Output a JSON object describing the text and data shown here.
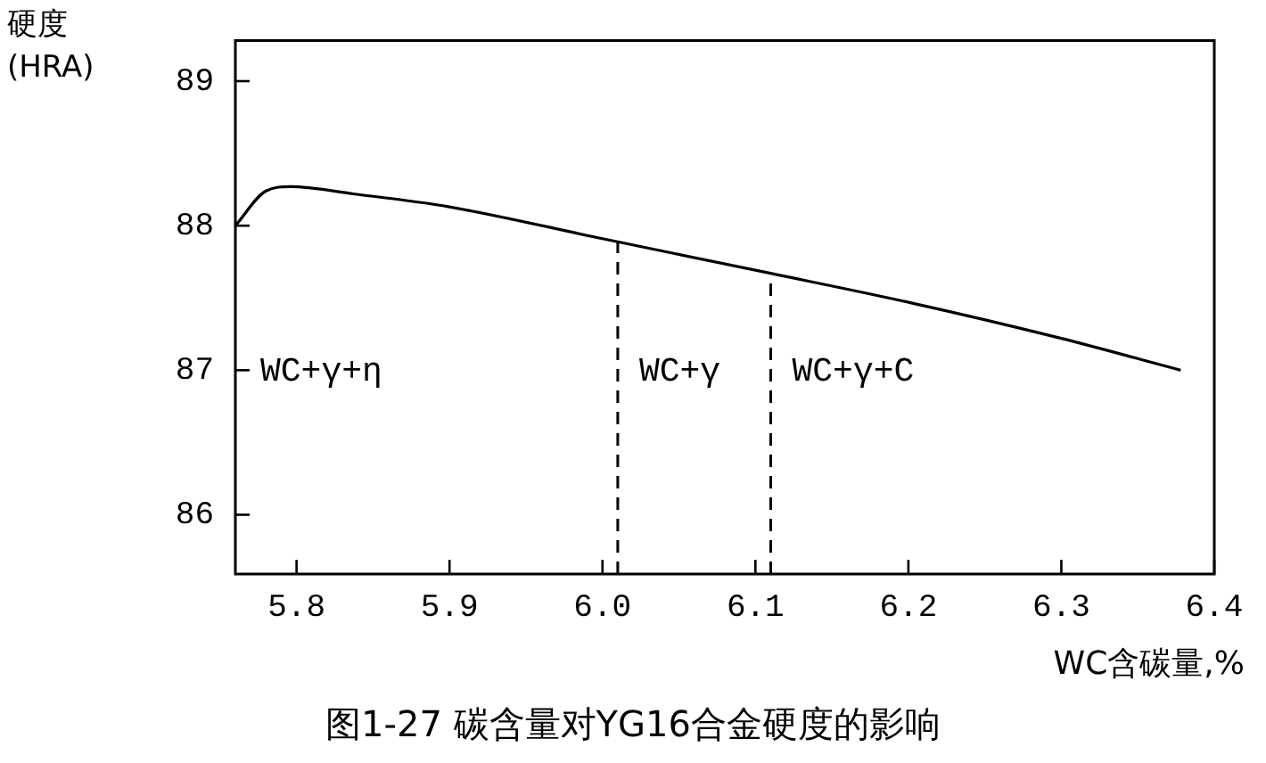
{
  "chart_data": {
    "type": "line",
    "title": "图1-27 碳含量对YG16合金硬度的影响",
    "xlabel": "WC含碳量,%",
    "ylabel": "硬度\n(HRA)",
    "x": [
      5.76,
      5.78,
      5.796,
      5.837,
      5.9,
      6.0,
      6.11,
      6.2,
      6.3,
      6.378
    ],
    "series": [
      {
        "color": "#000000",
        "values": [
          88.0,
          88.24,
          88.27,
          88.22,
          88.13,
          87.91,
          87.67,
          87.47,
          87.22,
          87.0
        ]
      }
    ],
    "xlim": [
      5.76,
      6.4
    ],
    "xticks": [
      5.8,
      5.9,
      {
        "value": 6.0,
        "label": "6.0"
      },
      6.1,
      6.2,
      6.3,
      6.4
    ],
    "ylim": [
      85.59,
      89.28
    ],
    "yticks": [
      86,
      87,
      88,
      89
    ],
    "ref_lines": [
      {
        "axis": "x",
        "value": 6.01,
        "color": "#000000",
        "line_style": "dashed"
      },
      {
        "axis": "x",
        "value": 6.11,
        "color": "#000000",
        "line_style": "dashed"
      }
    ],
    "annotations": [
      "WC+γ+η",
      "WC+γ",
      "WC+γ+C"
    ],
    "grid": false,
    "legend": false,
    "marker": "none",
    "line_style": "solid"
  }
}
